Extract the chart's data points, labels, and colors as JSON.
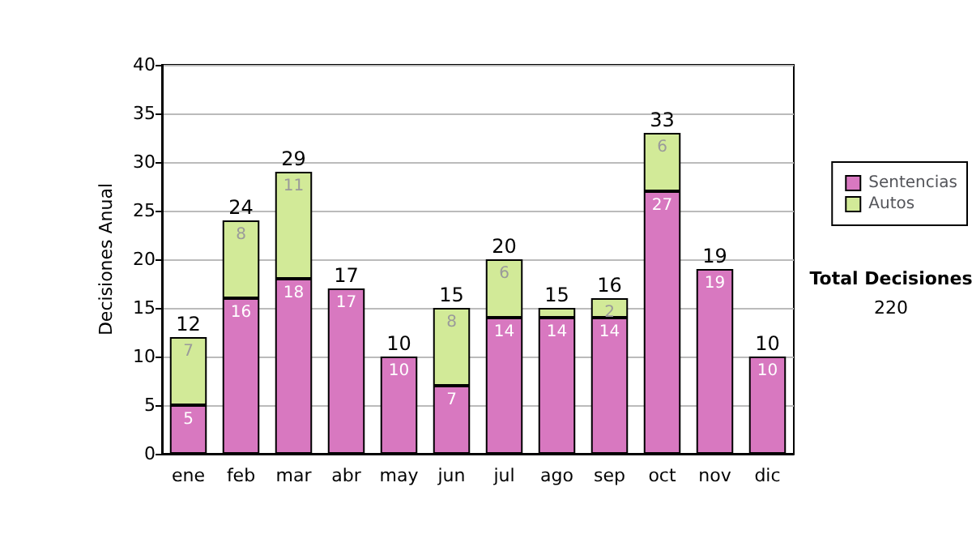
{
  "chart_data": {
    "type": "bar",
    "stacked": true,
    "ylabel": "Decisiones Anual",
    "categories": [
      "ene",
      "feb",
      "mar",
      "abr",
      "may",
      "jun",
      "jul",
      "ago",
      "sep",
      "oct",
      "nov",
      "dic"
    ],
    "series": [
      {
        "name": "Sentencias",
        "color": "#d878c0",
        "values": [
          5,
          16,
          18,
          17,
          10,
          7,
          14,
          14,
          14,
          27,
          19,
          10
        ],
        "value_labels": [
          "5",
          "16",
          "18",
          "17",
          "10",
          "7",
          "14",
          "14",
          "14",
          "27",
          "19",
          "10"
        ]
      },
      {
        "name": "Autos",
        "color": "#d2ea98",
        "values": [
          7,
          8,
          11,
          null,
          null,
          8,
          6,
          1,
          2,
          6,
          null,
          null
        ],
        "value_labels": [
          "7",
          "8",
          "11",
          null,
          null,
          "8",
          "6",
          null,
          "2",
          "6",
          null,
          null
        ]
      }
    ],
    "totals": [
      "12",
      "24",
      "29",
      "17",
      "10",
      "15",
      "20",
      "15",
      "16",
      "33",
      "19",
      "10"
    ],
    "ylim": [
      0,
      40
    ],
    "yticks": [
      0,
      5,
      10,
      15,
      20,
      25,
      30,
      35,
      40
    ],
    "grid": "y",
    "legend": "right",
    "annotations": [
      "Total Decisiones",
      "220"
    ]
  }
}
